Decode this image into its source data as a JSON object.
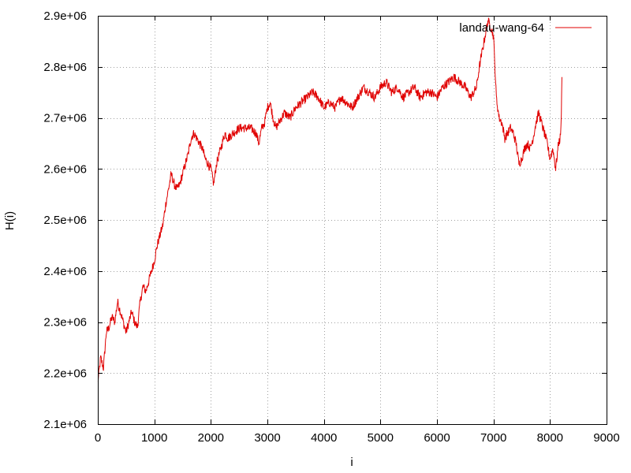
{
  "chart_data": {
    "type": "line",
    "title": "",
    "xlabel": "i",
    "ylabel": "H(i)",
    "xlim": [
      0,
      9000
    ],
    "ylim": [
      2100000,
      2900000
    ],
    "x_ticks": [
      0,
      1000,
      2000,
      3000,
      4000,
      5000,
      6000,
      7000,
      8000,
      9000
    ],
    "x_tick_labels": [
      "0",
      "1000",
      "2000",
      "3000",
      "4000",
      "5000",
      "6000",
      "7000",
      "8000",
      "9000"
    ],
    "y_ticks": [
      2100000,
      2200000,
      2300000,
      2400000,
      2500000,
      2600000,
      2700000,
      2800000,
      2900000
    ],
    "y_tick_labels": [
      "2.1e+06",
      "2.2e+06",
      "2.3e+06",
      "2.4e+06",
      "2.5e+06",
      "2.6e+06",
      "2.7e+06",
      "2.8e+06",
      "2.9e+06"
    ],
    "grid": true,
    "legend_position": "top-right",
    "series": [
      {
        "name": "landau-wang-64",
        "color": "#e00000",
        "x": [
          0,
          50,
          100,
          150,
          200,
          250,
          300,
          350,
          400,
          450,
          500,
          550,
          600,
          650,
          700,
          750,
          800,
          850,
          900,
          950,
          1000,
          1050,
          1100,
          1150,
          1200,
          1250,
          1300,
          1350,
          1400,
          1450,
          1500,
          1550,
          1600,
          1650,
          1700,
          1750,
          1800,
          1850,
          1900,
          1950,
          2000,
          2050,
          2100,
          2150,
          2200,
          2250,
          2300,
          2400,
          2500,
          2600,
          2700,
          2800,
          2850,
          2900,
          2950,
          3000,
          3050,
          3100,
          3150,
          3200,
          3250,
          3300,
          3400,
          3500,
          3600,
          3700,
          3800,
          3900,
          4000,
          4100,
          4200,
          4300,
          4400,
          4500,
          4600,
          4700,
          4800,
          4900,
          5000,
          5100,
          5200,
          5300,
          5400,
          5500,
          5600,
          5700,
          5800,
          5900,
          6000,
          6100,
          6200,
          6300,
          6400,
          6500,
          6600,
          6700,
          6750,
          6800,
          6850,
          6900,
          6950,
          7000,
          7050,
          7100,
          7150,
          7200,
          7250,
          7300,
          7350,
          7400,
          7450,
          7500,
          7550,
          7600,
          7650,
          7700,
          7750,
          7800,
          7850,
          7900,
          7950,
          8000,
          8050,
          8100,
          8150,
          8180,
          8200,
          8210
        ],
        "y": [
          2180000,
          2230000,
          2210000,
          2280000,
          2290000,
          2310000,
          2300000,
          2340000,
          2320000,
          2300000,
          2280000,
          2300000,
          2320000,
          2300000,
          2290000,
          2340000,
          2370000,
          2360000,
          2380000,
          2400000,
          2420000,
          2450000,
          2470000,
          2490000,
          2530000,
          2560000,
          2590000,
          2570000,
          2560000,
          2570000,
          2590000,
          2610000,
          2630000,
          2660000,
          2670000,
          2660000,
          2650000,
          2640000,
          2620000,
          2610000,
          2600000,
          2570000,
          2610000,
          2630000,
          2650000,
          2670000,
          2660000,
          2670000,
          2680000,
          2680000,
          2680000,
          2670000,
          2650000,
          2680000,
          2690000,
          2720000,
          2730000,
          2700000,
          2680000,
          2690000,
          2700000,
          2710000,
          2700000,
          2720000,
          2730000,
          2740000,
          2750000,
          2740000,
          2720000,
          2730000,
          2720000,
          2740000,
          2730000,
          2720000,
          2740000,
          2760000,
          2750000,
          2740000,
          2760000,
          2770000,
          2750000,
          2760000,
          2740000,
          2750000,
          2760000,
          2740000,
          2750000,
          2750000,
          2740000,
          2760000,
          2770000,
          2780000,
          2770000,
          2760000,
          2740000,
          2760000,
          2800000,
          2830000,
          2860000,
          2890000,
          2880000,
          2860000,
          2740000,
          2700000,
          2690000,
          2660000,
          2670000,
          2680000,
          2670000,
          2650000,
          2610000,
          2620000,
          2640000,
          2650000,
          2640000,
          2660000,
          2690000,
          2710000,
          2690000,
          2670000,
          2650000,
          2620000,
          2640000,
          2600000,
          2650000,
          2660000,
          2700000,
          2780000
        ]
      }
    ]
  }
}
